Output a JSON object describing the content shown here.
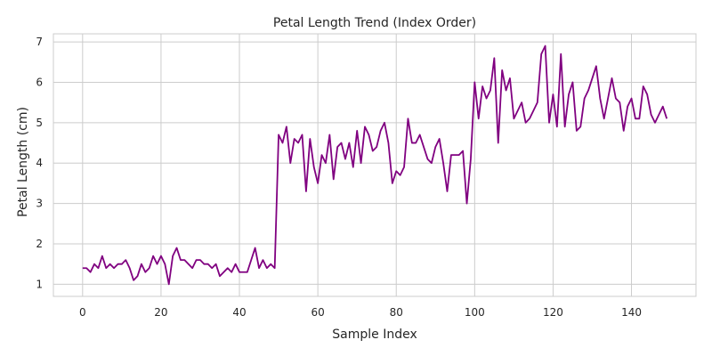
{
  "chart_data": {
    "type": "line",
    "title": "Petal Length Trend (Index Order)",
    "xlabel": "Sample Index",
    "ylabel": "Petal Length (cm)",
    "xlim": [
      -7.45,
      156.45
    ],
    "ylim": [
      0.7,
      7.2
    ],
    "xticks": [
      0,
      20,
      40,
      60,
      80,
      100,
      120,
      140
    ],
    "yticks": [
      1,
      2,
      3,
      4,
      5,
      6,
      7
    ],
    "grid": true,
    "series": [
      {
        "color": "#800080",
        "x_start": 0,
        "x_step": 1,
        "values": [
          1.4,
          1.4,
          1.3,
          1.5,
          1.4,
          1.7,
          1.4,
          1.5,
          1.4,
          1.5,
          1.5,
          1.6,
          1.4,
          1.1,
          1.2,
          1.5,
          1.3,
          1.4,
          1.7,
          1.5,
          1.7,
          1.5,
          1.0,
          1.7,
          1.9,
          1.6,
          1.6,
          1.5,
          1.4,
          1.6,
          1.6,
          1.5,
          1.5,
          1.4,
          1.5,
          1.2,
          1.3,
          1.4,
          1.3,
          1.5,
          1.3,
          1.3,
          1.3,
          1.6,
          1.9,
          1.4,
          1.6,
          1.4,
          1.5,
          1.4,
          4.7,
          4.5,
          4.9,
          4.0,
          4.6,
          4.5,
          4.7,
          3.3,
          4.6,
          3.9,
          3.5,
          4.2,
          4.0,
          4.7,
          3.6,
          4.4,
          4.5,
          4.1,
          4.5,
          3.9,
          4.8,
          4.0,
          4.9,
          4.7,
          4.3,
          4.4,
          4.8,
          5.0,
          4.5,
          3.5,
          3.8,
          3.7,
          3.9,
          5.1,
          4.5,
          4.5,
          4.7,
          4.4,
          4.1,
          4.0,
          4.4,
          4.6,
          4.0,
          3.3,
          4.2,
          4.2,
          4.2,
          4.3,
          3.0,
          4.1,
          6.0,
          5.1,
          5.9,
          5.6,
          5.8,
          6.6,
          4.5,
          6.3,
          5.8,
          6.1,
          5.1,
          5.3,
          5.5,
          5.0,
          5.1,
          5.3,
          5.5,
          6.7,
          6.9,
          5.0,
          5.7,
          4.9,
          6.7,
          4.9,
          5.7,
          6.0,
          4.8,
          4.9,
          5.6,
          5.8,
          6.1,
          6.4,
          5.6,
          5.1,
          5.6,
          6.1,
          5.6,
          5.5,
          4.8,
          5.4,
          5.6,
          5.1,
          5.1,
          5.9,
          5.7,
          5.2,
          5.0,
          5.2,
          5.4,
          5.1
        ]
      }
    ]
  }
}
